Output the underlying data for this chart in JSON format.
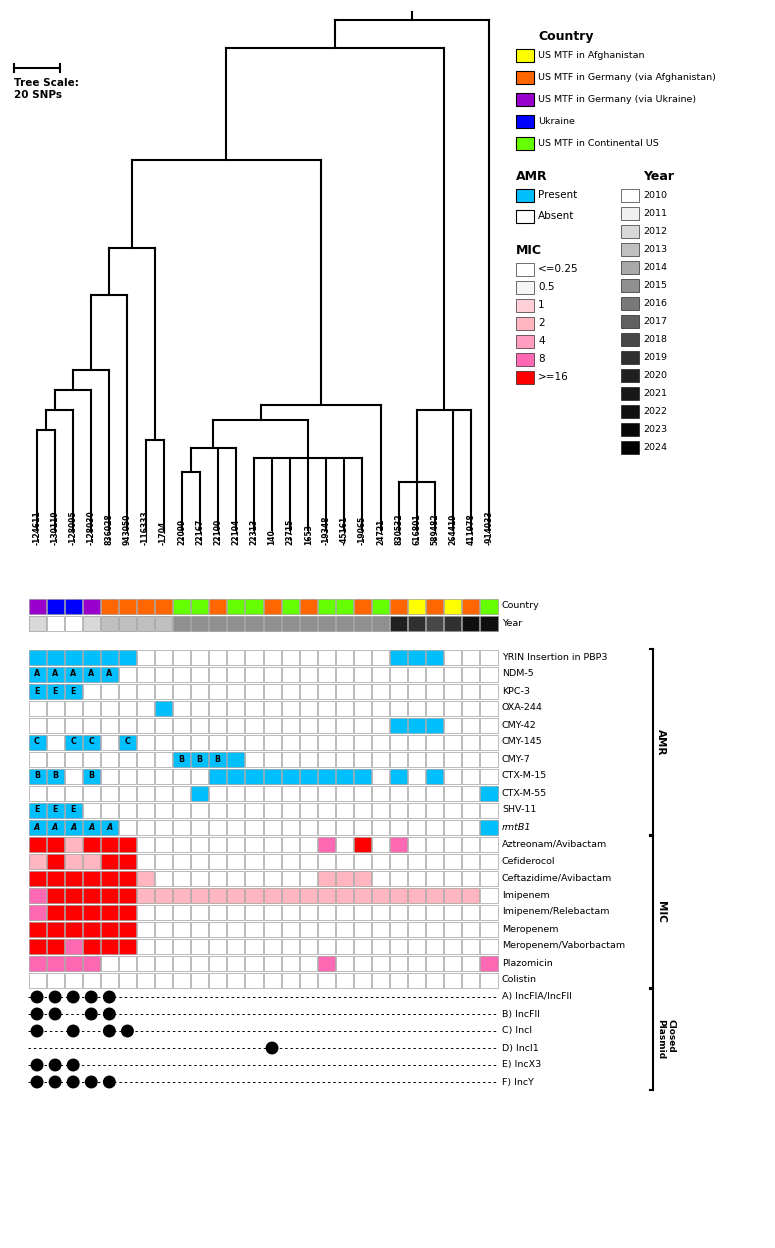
{
  "samples": [
    "-124611",
    "-130119",
    "-128095",
    "-128030",
    "836028",
    "943050",
    "-116333",
    "-1704",
    "22099",
    "22167",
    "22100",
    "22104",
    "22313",
    "140",
    "23715",
    "1653",
    "-19348",
    "-45161",
    "-19065",
    "24721",
    "830532",
    "616801",
    "589482",
    "264419",
    "411978",
    "-914033"
  ],
  "sample_country_hex": [
    "#9900CC",
    "#0000FF",
    "#0000FF",
    "#9900CC",
    "#FF6600",
    "#FF6600",
    "#FF6600",
    "#FF6600",
    "#66FF00",
    "#66FF00",
    "#FF6600",
    "#66FF00",
    "#66FF00",
    "#FF6600",
    "#66FF00",
    "#FF6600",
    "#66FF00",
    "#66FF00",
    "#FF6600",
    "#66FF00",
    "#FF6600",
    "#FFFF00",
    "#FF6600",
    "#FFFF00",
    "#FF6600",
    "#66FF00"
  ],
  "year_data": [
    2012,
    2010,
    2010,
    2012,
    2013,
    2013,
    2013,
    2013,
    2015,
    2015,
    2015,
    2015,
    2015,
    2015,
    2015,
    2015,
    2015,
    2015,
    2015,
    2015,
    2020,
    2019,
    2018,
    2019,
    2022,
    2022
  ],
  "amr_rows": {
    "YRIN Insertion in PBP3": [
      1,
      1,
      1,
      1,
      1,
      1,
      0,
      0,
      0,
      0,
      0,
      0,
      0,
      0,
      0,
      0,
      0,
      0,
      0,
      0,
      1,
      1,
      1,
      0,
      0,
      0
    ],
    "NDM-5": [
      1,
      1,
      1,
      1,
      1,
      0,
      0,
      0,
      0,
      0,
      0,
      0,
      0,
      0,
      0,
      0,
      0,
      0,
      0,
      0,
      0,
      0,
      0,
      0,
      0,
      0
    ],
    "KPC-3": [
      1,
      1,
      1,
      0,
      0,
      0,
      0,
      0,
      0,
      0,
      0,
      0,
      0,
      0,
      0,
      0,
      0,
      0,
      0,
      0,
      0,
      0,
      0,
      0,
      0,
      0
    ],
    "OXA-244": [
      0,
      0,
      0,
      0,
      0,
      0,
      0,
      1,
      0,
      0,
      0,
      0,
      0,
      0,
      0,
      0,
      0,
      0,
      0,
      0,
      0,
      0,
      0,
      0,
      0,
      0
    ],
    "CMY-42": [
      0,
      0,
      0,
      0,
      0,
      0,
      0,
      0,
      0,
      0,
      0,
      0,
      0,
      0,
      0,
      0,
      0,
      0,
      0,
      0,
      1,
      1,
      1,
      0,
      0,
      0
    ],
    "CMY-145": [
      1,
      0,
      1,
      1,
      0,
      1,
      0,
      0,
      0,
      0,
      0,
      0,
      0,
      0,
      0,
      0,
      0,
      0,
      0,
      0,
      0,
      0,
      0,
      0,
      0,
      0
    ],
    "CMY-7": [
      0,
      0,
      0,
      0,
      0,
      0,
      0,
      0,
      1,
      1,
      1,
      1,
      0,
      0,
      0,
      0,
      0,
      0,
      0,
      0,
      0,
      0,
      0,
      0,
      0,
      0
    ],
    "CTX-M-15": [
      1,
      1,
      0,
      1,
      0,
      0,
      0,
      0,
      0,
      0,
      1,
      1,
      1,
      1,
      1,
      1,
      1,
      1,
      1,
      0,
      1,
      0,
      1,
      0,
      0,
      0
    ],
    "CTX-M-55": [
      0,
      0,
      0,
      0,
      0,
      0,
      0,
      0,
      0,
      1,
      0,
      0,
      0,
      0,
      0,
      0,
      0,
      0,
      0,
      0,
      0,
      0,
      0,
      0,
      0,
      1
    ],
    "SHV-11": [
      1,
      1,
      1,
      0,
      0,
      0,
      0,
      0,
      0,
      0,
      0,
      0,
      0,
      0,
      0,
      0,
      0,
      0,
      0,
      0,
      0,
      0,
      0,
      0,
      0,
      0
    ],
    "rmtB1": [
      1,
      1,
      1,
      1,
      1,
      0,
      0,
      0,
      0,
      0,
      0,
      0,
      0,
      0,
      0,
      0,
      0,
      0,
      0,
      0,
      0,
      0,
      0,
      0,
      0,
      1
    ]
  },
  "amr_letters": {
    "NDM-5": {
      "0": "A",
      "1": "A",
      "2": "A",
      "3": "A",
      "4": "A"
    },
    "KPC-3": {
      "0": "E",
      "1": "E",
      "2": "E"
    },
    "CMY-145": {
      "0": "C",
      "2": "C",
      "3": "C",
      "5": "C"
    },
    "CMY-7": {
      "8": "B",
      "9": "B",
      "10": "B"
    },
    "CTX-M-15": {
      "0": "B",
      "1": "B",
      "3": "B"
    },
    "SHV-11": {
      "0": "E",
      "1": "E",
      "2": "E"
    },
    "rmtB1": {
      "0": "A",
      "1": "A",
      "2": "A",
      "3": "A",
      "4": "A"
    }
  },
  "mic_rows": {
    "Aztreonam/Avibactam": [
      "r",
      "r",
      "pl",
      "r",
      "r",
      "r",
      "w",
      "w",
      "w",
      "w",
      "w",
      "w",
      "w",
      "w",
      "w",
      "w",
      "p",
      "w",
      "r",
      "w",
      "p",
      "w",
      "w",
      "w",
      "w",
      "w"
    ],
    "Cefiderocol": [
      "pl",
      "r",
      "pl",
      "pl",
      "r",
      "r",
      "w",
      "w",
      "w",
      "w",
      "w",
      "w",
      "w",
      "w",
      "w",
      "w",
      "w",
      "w",
      "w",
      "w",
      "w",
      "w",
      "w",
      "w",
      "w",
      "w"
    ],
    "Ceftazidime/Avibactam": [
      "r",
      "r",
      "r",
      "r",
      "r",
      "r",
      "pl",
      "w",
      "w",
      "w",
      "w",
      "w",
      "w",
      "w",
      "w",
      "w",
      "pl",
      "pl",
      "pl",
      "w",
      "w",
      "w",
      "w",
      "w",
      "w",
      "w"
    ],
    "Imipenem": [
      "p",
      "r",
      "r",
      "r",
      "r",
      "r",
      "pl",
      "pl",
      "pl",
      "pl",
      "pl",
      "pl",
      "pl",
      "pl",
      "pl",
      "pl",
      "pl",
      "pl",
      "pl",
      "pl",
      "pl",
      "pl",
      "pl",
      "pl",
      "pl",
      "w"
    ],
    "Imipenem/Relebactam": [
      "p",
      "r",
      "r",
      "r",
      "r",
      "r",
      "w",
      "w",
      "w",
      "w",
      "w",
      "w",
      "w",
      "w",
      "w",
      "w",
      "w",
      "w",
      "w",
      "w",
      "w",
      "w",
      "w",
      "w",
      "w",
      "w"
    ],
    "Meropenem": [
      "r",
      "r",
      "r",
      "r",
      "r",
      "r",
      "w",
      "w",
      "w",
      "w",
      "w",
      "w",
      "w",
      "w",
      "w",
      "w",
      "w",
      "w",
      "w",
      "w",
      "w",
      "w",
      "w",
      "w",
      "w",
      "w"
    ],
    "Meropenem/Vaborbactam": [
      "r",
      "r",
      "p",
      "r",
      "r",
      "r",
      "w",
      "w",
      "w",
      "w",
      "w",
      "w",
      "w",
      "w",
      "w",
      "w",
      "w",
      "w",
      "w",
      "w",
      "w",
      "w",
      "w",
      "w",
      "w",
      "w"
    ],
    "Plazomicin": [
      "p",
      "p",
      "p",
      "p",
      "w",
      "w",
      "w",
      "w",
      "w",
      "w",
      "w",
      "w",
      "w",
      "w",
      "w",
      "w",
      "p",
      "w",
      "w",
      "w",
      "w",
      "w",
      "w",
      "w",
      "w",
      "p"
    ],
    "Colistin": [
      "w",
      "w",
      "w",
      "w",
      "w",
      "w",
      "w",
      "w",
      "w",
      "w",
      "w",
      "w",
      "w",
      "w",
      "w",
      "w",
      "w",
      "w",
      "w",
      "w",
      "w",
      "w",
      "w",
      "w",
      "w",
      "w"
    ]
  },
  "plasmid_rows": {
    "A) IncFIA/IncFII": [
      1,
      1,
      1,
      1,
      1,
      0,
      0,
      0,
      0,
      0,
      0,
      0,
      0,
      0,
      0,
      0,
      0,
      0,
      0,
      0,
      0,
      0,
      0,
      0,
      0,
      0
    ],
    "B) IncFII": [
      1,
      1,
      0,
      1,
      1,
      0,
      0,
      0,
      0,
      0,
      0,
      0,
      0,
      0,
      0,
      0,
      0,
      0,
      0,
      0,
      0,
      0,
      0,
      0,
      0,
      0
    ],
    "C) IncI": [
      1,
      0,
      1,
      0,
      1,
      1,
      0,
      0,
      0,
      0,
      0,
      0,
      0,
      0,
      0,
      0,
      0,
      0,
      0,
      0,
      0,
      0,
      0,
      0,
      0,
      0
    ],
    "D) IncI1": [
      0,
      0,
      0,
      0,
      0,
      0,
      0,
      0,
      0,
      0,
      0,
      0,
      0,
      1,
      0,
      0,
      0,
      0,
      0,
      0,
      0,
      0,
      0,
      0,
      0,
      0
    ],
    "E) IncX3": [
      1,
      1,
      1,
      0,
      0,
      0,
      0,
      0,
      0,
      0,
      0,
      0,
      0,
      0,
      0,
      0,
      0,
      0,
      0,
      0,
      0,
      0,
      0,
      0,
      0,
      0
    ],
    "F) IncY": [
      1,
      1,
      1,
      1,
      1,
      0,
      0,
      0,
      0,
      0,
      0,
      0,
      0,
      0,
      0,
      0,
      0,
      0,
      0,
      0,
      0,
      0,
      0,
      0,
      0,
      0
    ]
  },
  "country_legend": [
    [
      "US MTF in Afghanistan",
      "#FFFF00"
    ],
    [
      "US MTF in Germany (via Afghanistan)",
      "#FF6600"
    ],
    [
      "US MTF in Germany (via Ukraine)",
      "#9900CC"
    ],
    [
      "Ukraine",
      "#0000FF"
    ],
    [
      "US MTF in Continental US",
      "#66FF00"
    ]
  ],
  "year_grays": [
    "#FFFFFF",
    "#F0F0F0",
    "#D8D8D8",
    "#C0C0C0",
    "#A8A8A8",
    "#909090",
    "#787878",
    "#606060",
    "#484848",
    "#303030",
    "#202020",
    "#181818",
    "#101010",
    "#080808",
    "#000000"
  ],
  "mic_legend_labels": [
    "<=0.25",
    "0.5",
    "1",
    "2",
    "4",
    "8",
    ">=16"
  ],
  "mic_legend_colors": [
    "#FFFFFF",
    "#F5F5F5",
    "#FFD0D8",
    "#FFB6C1",
    "#FF9EC0",
    "#FF69B4",
    "#FF0000"
  ]
}
